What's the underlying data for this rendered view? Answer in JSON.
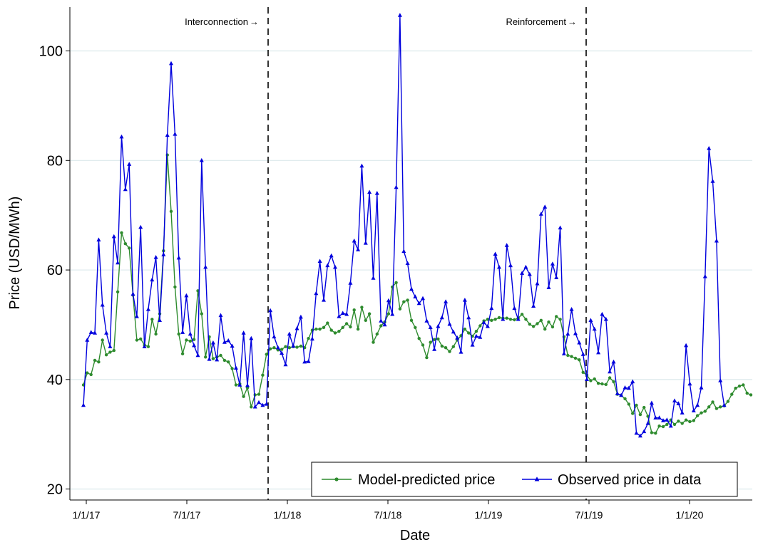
{
  "chart_data": {
    "type": "line",
    "xlabel": "Date",
    "ylabel": "Price (USD/MWh)",
    "x_axis": {
      "tick_labels": [
        "1/1/17",
        "7/1/17",
        "1/1/18",
        "7/1/18",
        "1/1/19",
        "7/1/19",
        "1/1/20"
      ]
    },
    "y_axis": {
      "tick_values": [
        20,
        40,
        60,
        80,
        100
      ],
      "ylim": [
        18,
        108
      ]
    },
    "grid": "horizontal",
    "legend_position": "bottom-right",
    "vlines": [
      {
        "label": "Interconnection",
        "arrow": "→",
        "week_index": 46
      },
      {
        "label": "Reinforcement",
        "arrow": "→",
        "week_index": 125
      }
    ],
    "series": [
      {
        "name": "Model-predicted price",
        "color": "#2e8b2e",
        "marker": "circle",
        "values": [
          39.0,
          41.2,
          40.9,
          43.5,
          43.2,
          47.2,
          44.5,
          45.0,
          45.3,
          56.0,
          66.8,
          64.8,
          64.0,
          55.4,
          47.2,
          47.4,
          46.3,
          46.0,
          51.0,
          48.3,
          52.0,
          63.5,
          81.0,
          70.7,
          56.9,
          48.3,
          44.7,
          47.2,
          47.0,
          47.3,
          56.2,
          52.0,
          44.1,
          47.8,
          43.8,
          44.1,
          44.4,
          43.5,
          43.2,
          42.0,
          39.0,
          39.2,
          36.9,
          38.5,
          35.0,
          37.2,
          37.3,
          40.8,
          44.6,
          45.6,
          45.8,
          45.4,
          45.5,
          46.0,
          45.8,
          46.0,
          45.9,
          46.1,
          45.8,
          47.5,
          49.0,
          49.2,
          49.2,
          49.5,
          50.3,
          49.0,
          48.5,
          48.8,
          49.5,
          50.2,
          49.6,
          52.7,
          49.2,
          53.2,
          50.8,
          52.0,
          46.8,
          48.3,
          49.8,
          50.5,
          52.0,
          56.9,
          57.7,
          52.9,
          54.2,
          54.5,
          50.8,
          49.5,
          47.5,
          46.3,
          44.0,
          46.8,
          47.3,
          47.4,
          46.1,
          45.8,
          45.1,
          46.0,
          47.2,
          48.0,
          49.2,
          48.5,
          47.9,
          48.8,
          49.8,
          50.7,
          51.0,
          50.8,
          51.0,
          51.3,
          51.2,
          51.2,
          51.0,
          50.9,
          51.2,
          51.9,
          51.0,
          50.1,
          49.7,
          50.2,
          50.8,
          49.2,
          50.5,
          49.6,
          51.5,
          51.0,
          47.8,
          44.4,
          44.2,
          43.9,
          43.6,
          41.3,
          40.8,
          39.8,
          40.1,
          39.3,
          39.2,
          39.1,
          40.3,
          39.6,
          37.3,
          37.1,
          36.5,
          35.5,
          33.8,
          35.3,
          33.6,
          34.9,
          33.3,
          30.3,
          30.2,
          31.5,
          31.4,
          31.8,
          32.6,
          31.8,
          32.4,
          32.0,
          32.6,
          32.3,
          32.5,
          33.4,
          33.9,
          34.2,
          35.0,
          35.9,
          34.7,
          35.0,
          35.2,
          36.0,
          37.3,
          38.4,
          38.8,
          39.0,
          37.5,
          37.2
        ]
      },
      {
        "name": "Observed price in data",
        "color": "#0000dd",
        "marker": "triangle",
        "values": [
          35.3,
          47.2,
          48.6,
          48.5,
          65.5,
          53.6,
          48.5,
          46.0,
          66.1,
          61.3,
          84.3,
          74.7,
          79.3,
          55.6,
          51.5,
          67.8,
          46.0,
          52.8,
          58.2,
          62.3,
          50.8,
          62.8,
          84.6,
          97.7,
          84.8,
          62.2,
          48.6,
          55.3,
          48.3,
          46.2,
          44.4,
          80.0,
          60.5,
          43.7,
          46.7,
          43.6,
          51.7,
          46.8,
          47.1,
          46.1,
          42.1,
          39.0,
          48.5,
          38.9,
          47.5,
          35.0,
          35.8,
          35.3,
          35.5,
          52.6,
          47.8,
          45.8,
          44.8,
          42.7,
          48.3,
          46.1,
          49.3,
          51.4,
          43.2,
          43.3,
          47.4,
          55.7,
          61.6,
          54.5,
          60.8,
          62.6,
          60.5,
          51.5,
          52.1,
          51.9,
          57.6,
          65.3,
          63.7,
          79.0,
          64.9,
          74.2,
          58.5,
          74.0,
          50.7,
          50.0,
          54.4,
          51.9,
          75.1,
          106.5,
          63.4,
          61.2,
          56.5,
          55.1,
          53.9,
          54.8,
          50.7,
          49.5,
          45.5,
          49.7,
          51.3,
          54.2,
          50.1,
          48.7,
          47.6,
          45.0,
          54.5,
          51.3,
          46.3,
          47.9,
          47.7,
          50.4,
          49.7,
          53.0,
          62.9,
          60.5,
          51.0,
          64.5,
          60.8,
          53.0,
          51.0,
          59.4,
          60.5,
          59.2,
          53.4,
          57.5,
          70.2,
          71.5,
          56.8,
          61.1,
          58.6,
          67.7,
          44.7,
          48.3,
          52.8,
          48.4,
          46.7,
          44.6,
          40.0,
          50.8,
          49.2,
          44.9,
          51.9,
          51.0,
          41.4,
          43.2,
          37.4,
          37.1,
          38.5,
          38.4,
          39.6,
          30.2,
          29.7,
          30.5,
          32.0,
          35.7,
          33.0,
          33.0,
          32.5,
          32.6,
          31.5,
          36.1,
          35.6,
          33.9,
          46.2,
          39.2,
          34.3,
          35.3,
          38.5,
          58.8,
          82.2,
          76.2,
          65.3,
          39.8,
          35.3
        ]
      }
    ]
  }
}
